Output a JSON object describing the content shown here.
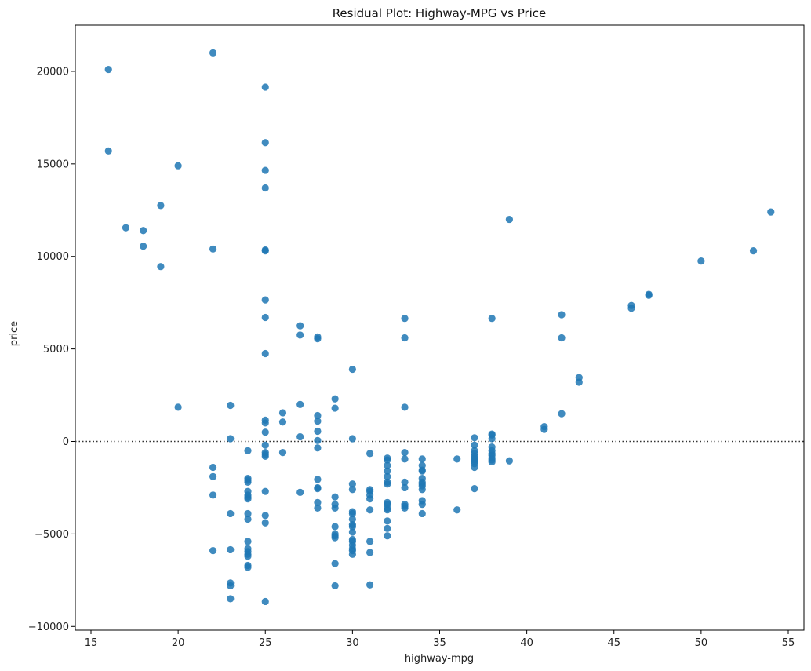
{
  "chart_data": {
    "type": "scatter",
    "title": "Residual Plot: Highway-MPG vs Price",
    "xlabel": "highway-mpg",
    "ylabel": "price",
    "xlim": [
      14.1,
      55.9
    ],
    "ylim": [
      -10200,
      22500
    ],
    "xticks": [
      15,
      20,
      25,
      30,
      35,
      40,
      45,
      50,
      55
    ],
    "yticks": [
      -10000,
      -5000,
      0,
      5000,
      10000,
      15000,
      20000
    ],
    "ytick_labels": [
      "−10000",
      "−5000",
      "0",
      "5000",
      "10000",
      "15000",
      "20000"
    ],
    "reference_line": {
      "y": 0,
      "style": "dotted",
      "color": "#333333"
    },
    "point_color": "#1f77b4",
    "grid": false,
    "series": [
      {
        "x": [
          16,
          16,
          17,
          18,
          18,
          19,
          19,
          20,
          20,
          22,
          22,
          22,
          22,
          22,
          22,
          23,
          23,
          23,
          23,
          23,
          23,
          23,
          24,
          24,
          24,
          24,
          24,
          24,
          24,
          24,
          24,
          24,
          24,
          24,
          24,
          24,
          24,
          24,
          24,
          25,
          25,
          25,
          25,
          25,
          25,
          25,
          25,
          25,
          25,
          25,
          25,
          25,
          25,
          25,
          25,
          25,
          25,
          25,
          25,
          26,
          26,
          26,
          27,
          27,
          27,
          27,
          27,
          28,
          28,
          28,
          28,
          28,
          28,
          28,
          28,
          28,
          28,
          28,
          28,
          29,
          29,
          29,
          29,
          29,
          29,
          29,
          29,
          29,
          29,
          29,
          30,
          30,
          30,
          30,
          30,
          30,
          30,
          30,
          30,
          30,
          30,
          30,
          30,
          30,
          30,
          30,
          31,
          31,
          31,
          31,
          31,
          31,
          31,
          31,
          31,
          32,
          32,
          32,
          32,
          32,
          32,
          32,
          32,
          32,
          32,
          32,
          32,
          32,
          32,
          33,
          33,
          33,
          33,
          33,
          33,
          33,
          33,
          33,
          33,
          34,
          34,
          34,
          34,
          34,
          34,
          34,
          34,
          34,
          34,
          34,
          34,
          36,
          36,
          37,
          37,
          37,
          37,
          37,
          37,
          37,
          37,
          37,
          37,
          37,
          38,
          38,
          38,
          38,
          38,
          38,
          38,
          38,
          38,
          38,
          38,
          39,
          39,
          41,
          41,
          42,
          42,
          42,
          43,
          43,
          46,
          46,
          47,
          47,
          50,
          53,
          54
        ],
        "y": [
          20100,
          15700,
          11550,
          11400,
          10550,
          9450,
          12750,
          14900,
          1850,
          21000,
          10400,
          -1400,
          -1900,
          -2900,
          -5900,
          1950,
          150,
          -3900,
          -5850,
          -7650,
          -7800,
          -8500,
          -500,
          -2000,
          -2100,
          -2200,
          -2700,
          -2900,
          -3000,
          -3100,
          -3900,
          -4200,
          -5400,
          -5800,
          -5950,
          -6100,
          -6200,
          -6800,
          -6700,
          19150,
          16150,
          14650,
          13700,
          10350,
          10300,
          7650,
          6700,
          4750,
          1150,
          1000,
          500,
          -200,
          -600,
          -700,
          -800,
          -2700,
          -4000,
          -4400,
          -8650,
          1550,
          1050,
          -600,
          6250,
          5750,
          2000,
          250,
          -2750,
          5650,
          5550,
          1400,
          1100,
          550,
          50,
          -350,
          -2050,
          -2500,
          -2550,
          -3300,
          -3600,
          2300,
          1800,
          -3000,
          -3400,
          -3600,
          -4600,
          -5000,
          -5100,
          -5200,
          -6600,
          -7800,
          3900,
          150,
          -2300,
          -2600,
          -3800,
          -3900,
          -4200,
          -4500,
          -4600,
          -4900,
          -5300,
          -5400,
          -5900,
          -6100,
          -5800,
          -5600,
          -650,
          -2700,
          -2900,
          -3100,
          -3700,
          -5400,
          -6000,
          -7750,
          -2600,
          -900,
          -1000,
          -1300,
          -1600,
          -1900,
          -2200,
          -2300,
          -3400,
          -3700,
          -4300,
          -4700,
          -5100,
          -3300,
          -3600,
          6650,
          5600,
          1850,
          -600,
          -950,
          -2200,
          -2500,
          -3400,
          -3600,
          -3500,
          -950,
          -1300,
          -1600,
          -2000,
          -2200,
          -2400,
          -2600,
          -3200,
          -3400,
          -3900,
          -1550,
          -2300,
          -950,
          -3700,
          200,
          -200,
          -500,
          -650,
          -800,
          -900,
          -1000,
          -1100,
          -1200,
          -1400,
          -2550,
          6650,
          400,
          350,
          150,
          -300,
          -500,
          -650,
          -750,
          -900,
          -1000,
          -1100,
          12000,
          -1050,
          800,
          650,
          6850,
          5600,
          1500,
          3450,
          3200,
          7350,
          7200,
          7950,
          7900,
          9750,
          10300,
          12400
        ]
      }
    ]
  }
}
